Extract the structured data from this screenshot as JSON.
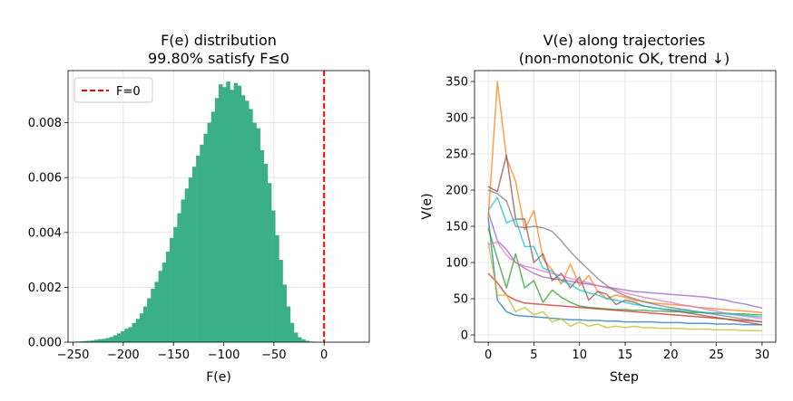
{
  "chart_data": [
    {
      "type": "bar",
      "title_lines": [
        "F(e) distribution",
        "99.80% satisfy F≤0"
      ],
      "xlabel": "F(e)",
      "ylabel": "",
      "xlim": [
        -255,
        45
      ],
      "ylim": [
        0,
        0.0099
      ],
      "xticks": [
        -250,
        -200,
        -150,
        -100,
        -50,
        0
      ],
      "xtick_labels": [
        "−250",
        "−200",
        "−150",
        "−100",
        "−50",
        "0"
      ],
      "yticks": [
        0,
        0.002,
        0.004,
        0.006,
        0.008
      ],
      "ytick_labels": [
        "0.000",
        "0.002",
        "0.004",
        "0.006",
        "0.008"
      ],
      "grid": true,
      "bar_color": "#3aaf88",
      "legend": {
        "placement": "top-left",
        "entries": [
          {
            "label": "F=0",
            "color": "#ff0000",
            "style": "dashed"
          }
        ]
      },
      "reference_line": {
        "x": 0,
        "color": "#ff0000",
        "style": "dashed"
      },
      "bin_start": -255,
      "bin_width": 3.75,
      "values": [
        1e-05,
        1e-05,
        2e-05,
        3e-05,
        4e-05,
        5e-05,
        6e-05,
        9e-05,
        0.00011,
        0.00012,
        0.00015,
        0.00019,
        0.00025,
        0.00032,
        0.0004,
        0.00049,
        0.00055,
        0.0007,
        0.00085,
        0.00105,
        0.0013,
        0.0016,
        0.00195,
        0.0022,
        0.0026,
        0.0029,
        0.0033,
        0.0038,
        0.0042,
        0.0047,
        0.0052,
        0.0056,
        0.006,
        0.0064,
        0.0068,
        0.0072,
        0.0076,
        0.008,
        0.0084,
        0.0089,
        0.0094,
        0.0093,
        0.0095,
        0.0092,
        0.00945,
        0.00935,
        0.009,
        0.0088,
        0.0085,
        0.008,
        0.0078,
        0.007,
        0.0065,
        0.0058,
        0.0048,
        0.0039,
        0.003,
        0.0021,
        0.0013,
        0.0007,
        0.00035,
        0.00018,
        0.0001,
        5e-05,
        2e-05,
        1e-05
      ]
    },
    {
      "type": "line",
      "title_lines": [
        "V(e) along trajectories",
        "(non-monotonic OK, trend ↓)"
      ],
      "xlabel": "Step",
      "ylabel": "V(e)",
      "xlim": [
        -1.5,
        31.5
      ],
      "ylim": [
        -10,
        365
      ],
      "xticks": [
        0,
        5,
        10,
        15,
        20,
        25,
        30
      ],
      "xtick_labels": [
        "0",
        "5",
        "10",
        "15",
        "20",
        "25",
        "30"
      ],
      "yticks": [
        0,
        50,
        100,
        150,
        200,
        250,
        300,
        350
      ],
      "ytick_labels": [
        "0",
        "50",
        "100",
        "150",
        "200",
        "250",
        "300",
        "350"
      ],
      "grid": true,
      "x": [
        0,
        1,
        2,
        3,
        4,
        5,
        6,
        7,
        8,
        9,
        10,
        11,
        12,
        13,
        14,
        15,
        16,
        17,
        18,
        19,
        20,
        21,
        22,
        23,
        24,
        25,
        26,
        27,
        28,
        29,
        30
      ],
      "series": [
        {
          "color": "#1f77b4",
          "values": [
            162,
            48,
            32,
            27,
            26,
            25,
            24,
            23,
            22,
            21,
            21,
            20,
            20,
            19,
            19,
            18,
            18,
            18,
            18,
            17,
            17,
            17,
            16,
            16,
            16,
            15,
            15,
            15,
            14,
            14,
            14
          ]
        },
        {
          "color": "#ff7f0e",
          "values": [
            160,
            350,
            245,
            212,
            145,
            172,
            105,
            90,
            70,
            98,
            68,
            82,
            60,
            50,
            55,
            52,
            48,
            46,
            44,
            43,
            42,
            41,
            40,
            38,
            37,
            36,
            35,
            34,
            33,
            32,
            31
          ]
        },
        {
          "color": "#2ca02c",
          "values": [
            148,
            105,
            65,
            112,
            65,
            75,
            45,
            62,
            52,
            45,
            40,
            38,
            37,
            36,
            35,
            35,
            34,
            34,
            33,
            33,
            32,
            32,
            31,
            31,
            30,
            30,
            30,
            29,
            29,
            28,
            28
          ]
        },
        {
          "color": "#d62728",
          "values": [
            85,
            72,
            55,
            48,
            44,
            43,
            42,
            41,
            40,
            39,
            38,
            37,
            36,
            35,
            34,
            33,
            32,
            31,
            30,
            29,
            28,
            27,
            26,
            25,
            24,
            23,
            22,
            21,
            20,
            19,
            18
          ]
        },
        {
          "color": "#9467bd",
          "values": [
            170,
            130,
            118,
            100,
            92,
            85,
            80,
            78,
            76,
            74,
            72,
            70,
            68,
            66,
            64,
            62,
            60,
            59,
            58,
            57,
            56,
            55,
            54,
            53,
            52,
            50,
            48,
            45,
            43,
            40,
            37
          ]
        },
        {
          "color": "#8c564b",
          "values": [
            205,
            198,
            248,
            160,
            160,
            100,
            112,
            75,
            85,
            65,
            80,
            48,
            60,
            56,
            42,
            48,
            45,
            40,
            38,
            36,
            34,
            32,
            30,
            28,
            26,
            24,
            22,
            20,
            18,
            16,
            14
          ]
        },
        {
          "color": "#e377c2",
          "values": [
            125,
            128,
            110,
            100,
            95,
            92,
            88,
            85,
            82,
            78,
            75,
            72,
            68,
            65,
            62,
            58,
            55,
            52,
            50,
            47,
            45,
            42,
            40,
            38,
            35,
            33,
            30,
            28,
            26,
            24,
            22
          ]
        },
        {
          "color": "#7f7f7f",
          "values": [
            200,
            195,
            185,
            150,
            148,
            150,
            148,
            143,
            130,
            115,
            102,
            90,
            78,
            68,
            60,
            54,
            50,
            46,
            43,
            40,
            38,
            36,
            34,
            32,
            30,
            28,
            26,
            24,
            22,
            20,
            18
          ]
        },
        {
          "color": "#bcbd22",
          "values": [
            128,
            55,
            55,
            32,
            38,
            28,
            32,
            18,
            22,
            12,
            18,
            12,
            15,
            10,
            12,
            10,
            12,
            10,
            10,
            9,
            9,
            9,
            8,
            8,
            8,
            7,
            7,
            7,
            6,
            6,
            6
          ]
        },
        {
          "color": "#17becf",
          "values": [
            172,
            190,
            155,
            160,
            122,
            122,
            92,
            88,
            75,
            70,
            62,
            58,
            55,
            50,
            48,
            45,
            42,
            40,
            38,
            36,
            35,
            34,
            33,
            32,
            31,
            30,
            29,
            28,
            27,
            26,
            25
          ]
        }
      ]
    }
  ]
}
